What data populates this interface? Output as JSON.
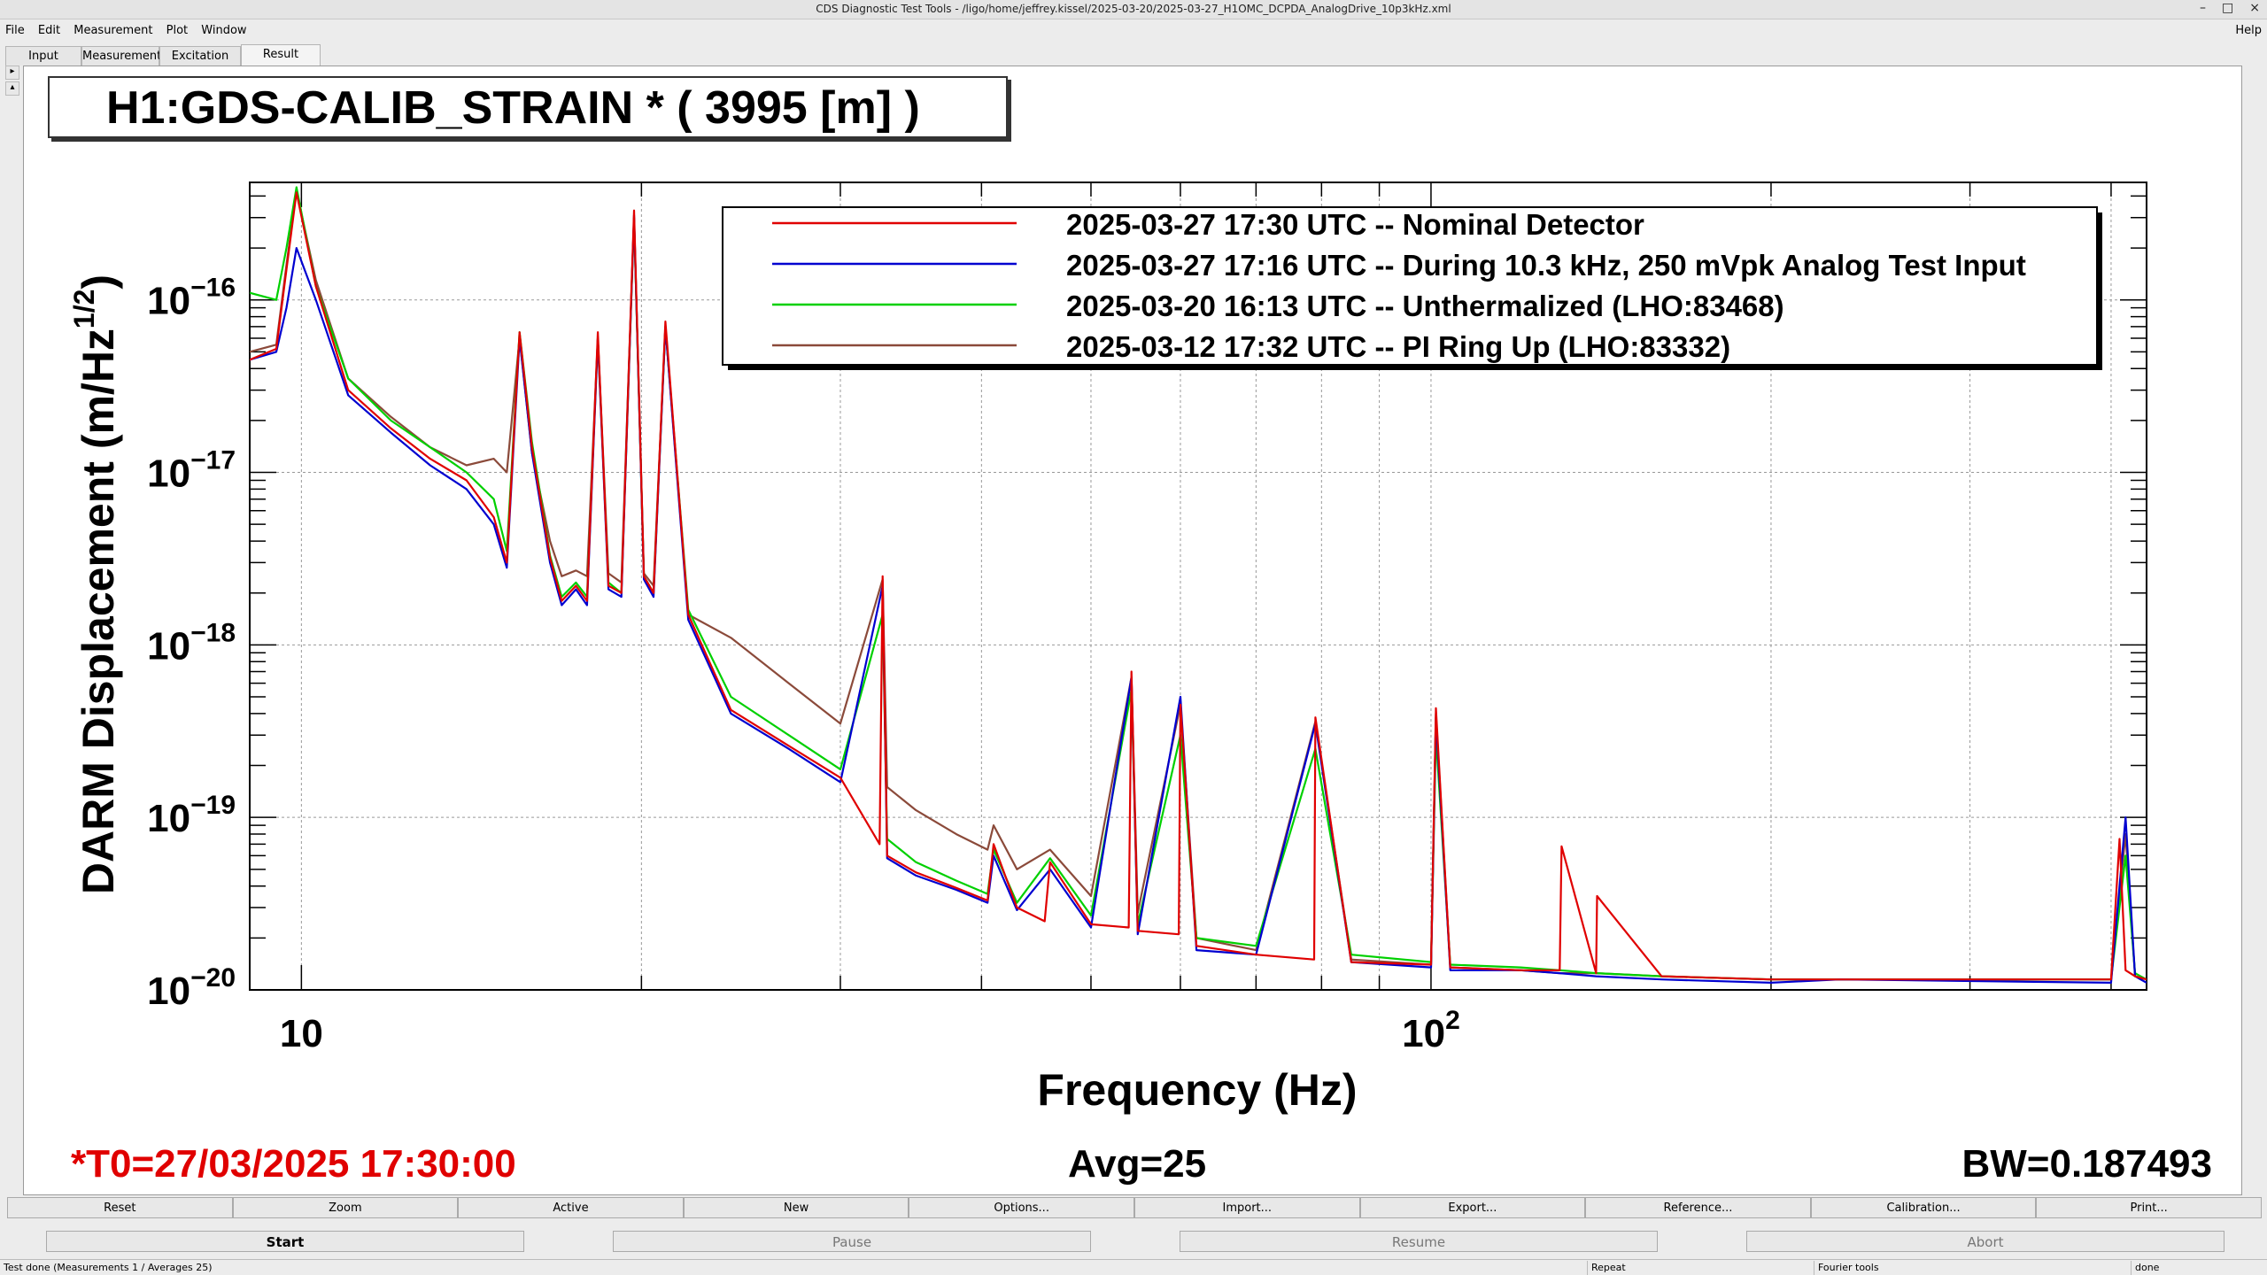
{
  "window": {
    "title": "CDS Diagnostic Test Tools - /ligo/home/jeffrey.kissel/2025-03-20/2025-03-27_H1OMC_DCPDA_AnalogDrive_10p3kHz.xml",
    "min": "–",
    "max": "□",
    "close": "×"
  },
  "menu": {
    "file": "File",
    "edit": "Edit",
    "measurement": "Measurement",
    "plot": "Plot",
    "window": "Window",
    "help": "Help"
  },
  "tabs": {
    "input": "Input",
    "measurement": "Measurement",
    "excitation": "Excitation",
    "result": "Result"
  },
  "channel_title": "H1:GDS-CALIB_STRAIN * ( 3995 [m] )",
  "footer": {
    "t0": "*T0=27/03/2025 17:30:00",
    "avg": "Avg=25",
    "bw": "BW=0.187493"
  },
  "buttons": {
    "reset": "Reset",
    "zoom": "Zoom",
    "active": "Active",
    "new": "New",
    "options": "Options...",
    "import": "Import...",
    "export": "Export...",
    "reference": "Reference...",
    "calibration": "Calibration...",
    "print": "Print...",
    "start": "Start",
    "pause": "Pause",
    "resume": "Resume",
    "abort": "Abort"
  },
  "status": {
    "message": "Test done (Measurements 1 / Averages 25)",
    "repeat": "Repeat",
    "fourier": "Fourier tools",
    "state": "done"
  },
  "chart_data": {
    "type": "line",
    "xlabel": "Frequency (Hz)",
    "ylabel_main": "DARM Displacement (m/Hz",
    "ylabel_sup": "1/2",
    "ylabel_close": ")",
    "xscale": "log",
    "yscale": "log",
    "xlim": [
      9,
      430
    ],
    "ylim": [
      1e-20,
      4.8e-16
    ],
    "grid": true,
    "legend_position": "top-right",
    "x_ticks": [
      {
        "base": "10",
        "exp": "",
        "value": 10
      },
      {
        "base": "10",
        "exp": "2",
        "value": 100
      }
    ],
    "y_ticks": [
      {
        "base": "10",
        "exp": "−16",
        "value": 1e-16
      },
      {
        "base": "10",
        "exp": "−17",
        "value": 1e-17
      },
      {
        "base": "10",
        "exp": "−18",
        "value": 1e-18
      },
      {
        "base": "10",
        "exp": "−19",
        "value": 1e-19
      },
      {
        "base": "10",
        "exp": "−20",
        "value": 1e-20
      }
    ],
    "series": [
      {
        "name": "2025-03-27 17:30 UTC -- Nominal Detector",
        "color": "#e00000",
        "x": [
          9,
          9.5,
          9.7,
          9.9,
          10.3,
          11,
          12,
          13,
          14,
          14.8,
          15.2,
          15.6,
          16,
          16.6,
          17,
          17.5,
          17.9,
          18.3,
          18.7,
          19.2,
          19.7,
          20.1,
          20.5,
          21,
          22,
          24,
          27,
          30,
          32.5,
          32.7,
          33,
          35,
          38,
          40.5,
          41,
          43,
          45.5,
          46,
          50,
          54,
          54.3,
          55,
          59.8,
          60,
          62,
          70,
          78.8,
          79,
          85,
          100,
          101,
          104,
          120,
          130,
          130.5,
          140,
          140.3,
          160,
          200,
          230,
          400,
          407,
          412,
          420,
          430
        ],
        "y": [
          4.5e-17,
          5.2e-17,
          1.5e-16,
          4.2e-16,
          1.2e-16,
          3e-17,
          1.8e-17,
          1.2e-17,
          9e-18,
          5.5e-18,
          3e-18,
          6.5e-17,
          1.4e-17,
          3.2e-18,
          1.8e-18,
          2.2e-18,
          1.8e-18,
          6.5e-17,
          2.2e-18,
          2e-18,
          3.3e-16,
          2.5e-18,
          2e-18,
          7.5e-17,
          1.5e-18,
          4.2e-19,
          2.6e-19,
          1.7e-19,
          7e-20,
          2.5e-18,
          6e-20,
          4.8e-20,
          3.9e-20,
          3.3e-20,
          7e-20,
          3e-20,
          2.5e-20,
          5.5e-20,
          2.4e-20,
          2.3e-20,
          7e-19,
          2.2e-20,
          2.1e-20,
          4.5e-19,
          1.8e-20,
          1.6e-20,
          1.5e-20,
          3.8e-19,
          1.45e-20,
          1.4e-20,
          4.3e-19,
          1.35e-20,
          1.3e-20,
          1.3e-20,
          6.8e-20,
          1.25e-20,
          3.5e-20,
          1.2e-20,
          1.15e-20,
          1.15e-20,
          1.15e-20,
          7.5e-20,
          1.3e-20,
          1.2e-20,
          1.15e-20
        ]
      },
      {
        "name": "2025-03-27 17:16 UTC -- During 10.3 kHz, 250 mVpk Analog Test Input",
        "color": "#0000d0",
        "x": [
          9,
          9.5,
          9.7,
          9.9,
          10.3,
          11,
          12,
          13,
          14,
          14.8,
          15.2,
          15.6,
          16,
          16.6,
          17,
          17.5,
          17.9,
          18.3,
          18.7,
          19.2,
          19.7,
          20.1,
          20.5,
          21,
          22,
          24,
          27,
          30,
          32.7,
          33,
          35,
          38,
          40.5,
          41,
          43,
          46,
          50,
          54.3,
          55,
          60,
          62,
          70,
          79,
          85,
          100,
          101,
          104,
          120,
          130,
          140,
          160,
          200,
          230,
          400,
          412,
          420,
          430
        ],
        "y": [
          4.5e-17,
          5e-17,
          9e-17,
          2e-16,
          1e-16,
          2.8e-17,
          1.7e-17,
          1.1e-17,
          8e-18,
          5e-18,
          2.8e-18,
          6e-17,
          1.3e-17,
          3e-18,
          1.7e-18,
          2.1e-18,
          1.7e-18,
          6e-17,
          2.1e-18,
          1.9e-18,
          3.1e-16,
          2.4e-18,
          1.9e-18,
          7e-17,
          1.4e-18,
          4e-19,
          2.5e-19,
          1.6e-19,
          2.2e-18,
          5.8e-20,
          4.6e-20,
          3.8e-20,
          3.2e-20,
          6e-20,
          2.9e-20,
          5e-20,
          2.3e-20,
          6.5e-19,
          2.1e-20,
          5e-19,
          1.7e-20,
          1.6e-20,
          3.5e-19,
          1.45e-20,
          1.35e-20,
          3.8e-19,
          1.3e-20,
          1.3e-20,
          1.25e-20,
          1.2e-20,
          1.15e-20,
          1.1e-20,
          1.15e-20,
          1.1e-20,
          1e-19,
          1.2e-20,
          1.1e-20
        ]
      },
      {
        "name": "2025-03-20 16:13 UTC -- Unthermalized (LHO:83468)",
        "color": "#00d000",
        "x": [
          9,
          9.5,
          9.7,
          9.9,
          10.3,
          11,
          12,
          13,
          14,
          14.8,
          15.2,
          15.6,
          16,
          16.6,
          17,
          17.5,
          17.9,
          18.3,
          18.7,
          19.2,
          19.7,
          20.1,
          20.5,
          21,
          22,
          24,
          27,
          30,
          32.7,
          33,
          35,
          38,
          40.5,
          41,
          43,
          46,
          50,
          54.3,
          55,
          60,
          62,
          70,
          79,
          85,
          100,
          101,
          104,
          120,
          130,
          140,
          160,
          200,
          230,
          400,
          412,
          420,
          430
        ],
        "y": [
          1.1e-16,
          1e-16,
          2e-16,
          4.5e-16,
          1.2e-16,
          3.5e-17,
          2e-17,
          1.4e-17,
          1e-17,
          7e-18,
          3.5e-18,
          6.5e-17,
          1.5e-17,
          3.3e-18,
          1.9e-18,
          2.3e-18,
          1.9e-18,
          6e-17,
          2.3e-18,
          2e-18,
          3e-16,
          2.5e-18,
          2e-18,
          7e-17,
          1.6e-18,
          5e-19,
          3e-19,
          1.9e-19,
          1.5e-18,
          7.5e-20,
          5.5e-20,
          4.3e-20,
          3.6e-20,
          6.5e-20,
          3.2e-20,
          5.8e-20,
          2.7e-20,
          5.5e-19,
          2.4e-20,
          3e-19,
          2e-20,
          1.8e-20,
          2.5e-19,
          1.6e-20,
          1.45e-20,
          3e-19,
          1.4e-20,
          1.35e-20,
          1.3e-20,
          1.25e-20,
          1.2e-20,
          1.15e-20,
          1.15e-20,
          1.15e-20,
          6e-20,
          1.25e-20,
          1.15e-20
        ]
      },
      {
        "name": "2025-03-12 17:32 UTC -- PI Ring Up (LHO:83332)",
        "color": "#8b4a3a",
        "x": [
          9,
          9.5,
          9.7,
          9.9,
          10.3,
          11,
          12,
          13,
          14,
          14.8,
          15.2,
          15.6,
          16,
          16.6,
          17,
          17.5,
          17.9,
          18.3,
          18.7,
          19.2,
          19.7,
          20.1,
          20.5,
          21,
          22,
          24,
          27,
          30,
          32.7,
          33,
          35,
          38,
          40.5,
          41,
          43,
          46,
          50,
          54.3,
          55,
          60,
          62,
          70,
          79,
          85,
          100,
          101,
          104,
          120,
          130,
          140,
          160,
          200,
          230,
          400,
          412,
          420,
          430
        ],
        "y": [
          5e-17,
          5.5e-17,
          1.6e-16,
          4.3e-16,
          1.3e-16,
          3.5e-17,
          2.1e-17,
          1.4e-17,
          1.1e-17,
          1.2e-17,
          1e-17,
          6e-17,
          1.3e-17,
          4e-18,
          2.5e-18,
          2.7e-18,
          2.5e-18,
          6e-17,
          2.6e-18,
          2.3e-18,
          3e-16,
          2.6e-18,
          2.2e-18,
          7e-17,
          1.5e-18,
          1.1e-18,
          6e-19,
          3.5e-19,
          2.4e-18,
          1.5e-19,
          1.1e-19,
          8e-20,
          6.5e-20,
          9e-20,
          5e-20,
          6.5e-20,
          3.5e-20,
          6.5e-19,
          2.8e-20,
          4.5e-19,
          2e-20,
          1.7e-20,
          3.6e-19,
          1.5e-20,
          1.4e-20,
          4e-19,
          1.35e-20,
          1.3e-20,
          1.25e-20,
          1.25e-20,
          1.2e-20,
          1.15e-20,
          1.15e-20,
          1.15e-20,
          8e-20,
          1.2e-20,
          1.15e-20
        ]
      }
    ]
  }
}
